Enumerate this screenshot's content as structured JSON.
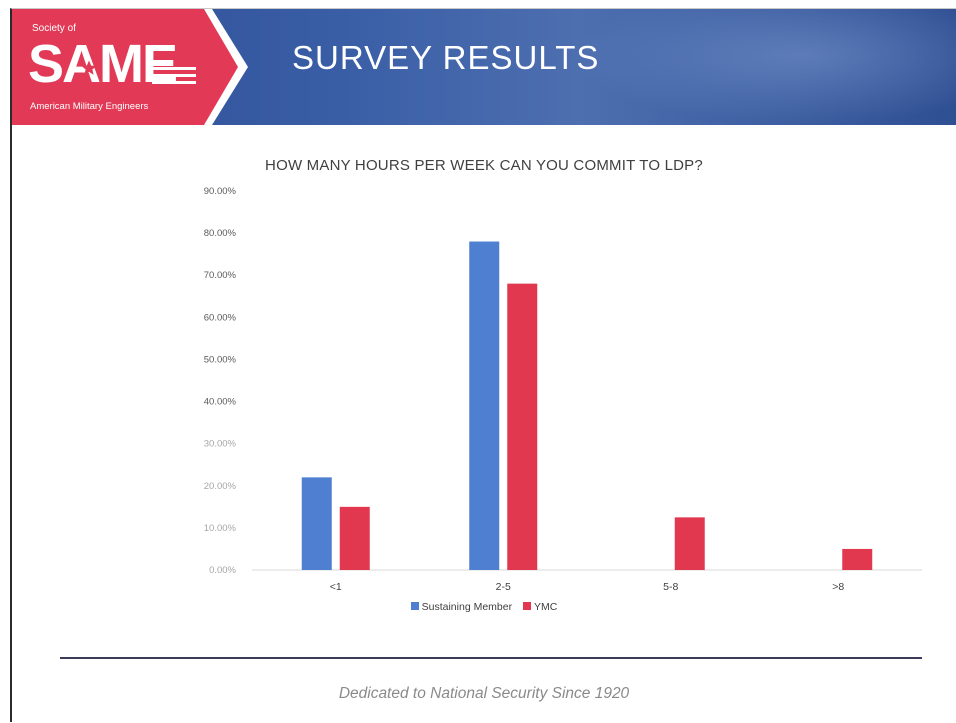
{
  "slide": {
    "title": "SURVEY RESULTS",
    "footer": "Dedicated to National Security Since 1920"
  },
  "logo": {
    "top_text": "Society of",
    "main_text": "SAME",
    "bottom_text": "American Military Engineers",
    "colors": {
      "primary": "#e23a56",
      "secondary": "#ffffff"
    }
  },
  "colors": {
    "header_blue": "#2f5196",
    "logo_red": "#e23a56",
    "series_blue": "#4f7fd1",
    "series_red": "#e2384f"
  },
  "chart_data": {
    "type": "bar",
    "title": "HOW MANY HOURS PER WEEK CAN YOU COMMIT TO LDP?",
    "categories": [
      "<1",
      "2-5",
      "5-8",
      ">8"
    ],
    "series": [
      {
        "name": "Sustaining Member",
        "color": "#4f7fd1",
        "values": [
          22.0,
          78.0,
          0.0,
          0.0
        ]
      },
      {
        "name": "YMC",
        "color": "#e2384f",
        "values": [
          15.0,
          68.0,
          12.5,
          5.0
        ]
      }
    ],
    "ylim": [
      0,
      90
    ],
    "yticks": [
      "0.00%",
      "10.00%",
      "20.00%",
      "30.00%",
      "40.00%",
      "50.00%",
      "60.00%",
      "70.00%",
      "80.00%",
      "90.00%"
    ],
    "ytick_values": [
      0,
      10,
      20,
      30,
      40,
      50,
      60,
      70,
      80,
      90
    ],
    "grid": false,
    "legend_position": "bottom"
  }
}
